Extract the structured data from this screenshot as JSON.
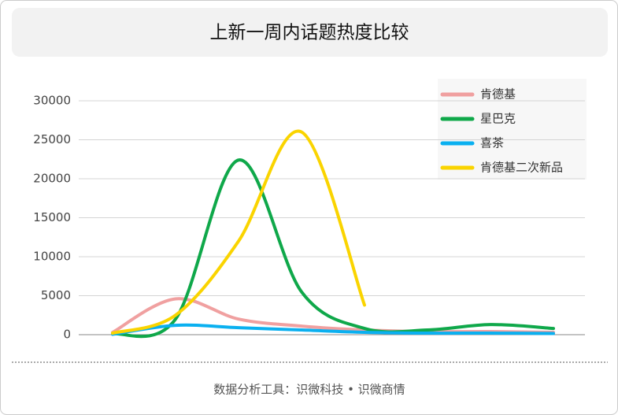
{
  "chart_data": {
    "type": "line",
    "title": "上新一周内话题热度比较",
    "footer": "数据分析工具：识微科技 • 识微商情",
    "categories": [
      null,
      null,
      null,
      null,
      null,
      null,
      null,
      null
    ],
    "series": [
      {
        "name": "肯德基",
        "color": "#f0a0a0",
        "values": [
          300,
          4600,
          2000,
          1100,
          600,
          400,
          400,
          300
        ]
      },
      {
        "name": "星巴克",
        "color": "#0fa84a",
        "values": [
          100,
          2000,
          22400,
          5500,
          800,
          600,
          1300,
          800
        ]
      },
      {
        "name": "喜茶",
        "color": "#0ab0f0",
        "values": [
          50,
          1200,
          900,
          600,
          300,
          200,
          200,
          150
        ]
      },
      {
        "name": "肯德基二次新品",
        "color": "#fad400",
        "values": [
          200,
          2500,
          12000,
          26000,
          3800,
          null,
          null,
          null
        ]
      }
    ],
    "ylim": [
      0,
      30000
    ],
    "yticks": [
      0,
      5000,
      10000,
      15000,
      20000,
      25000,
      30000
    ],
    "grid": true,
    "legend": "top-right"
  }
}
